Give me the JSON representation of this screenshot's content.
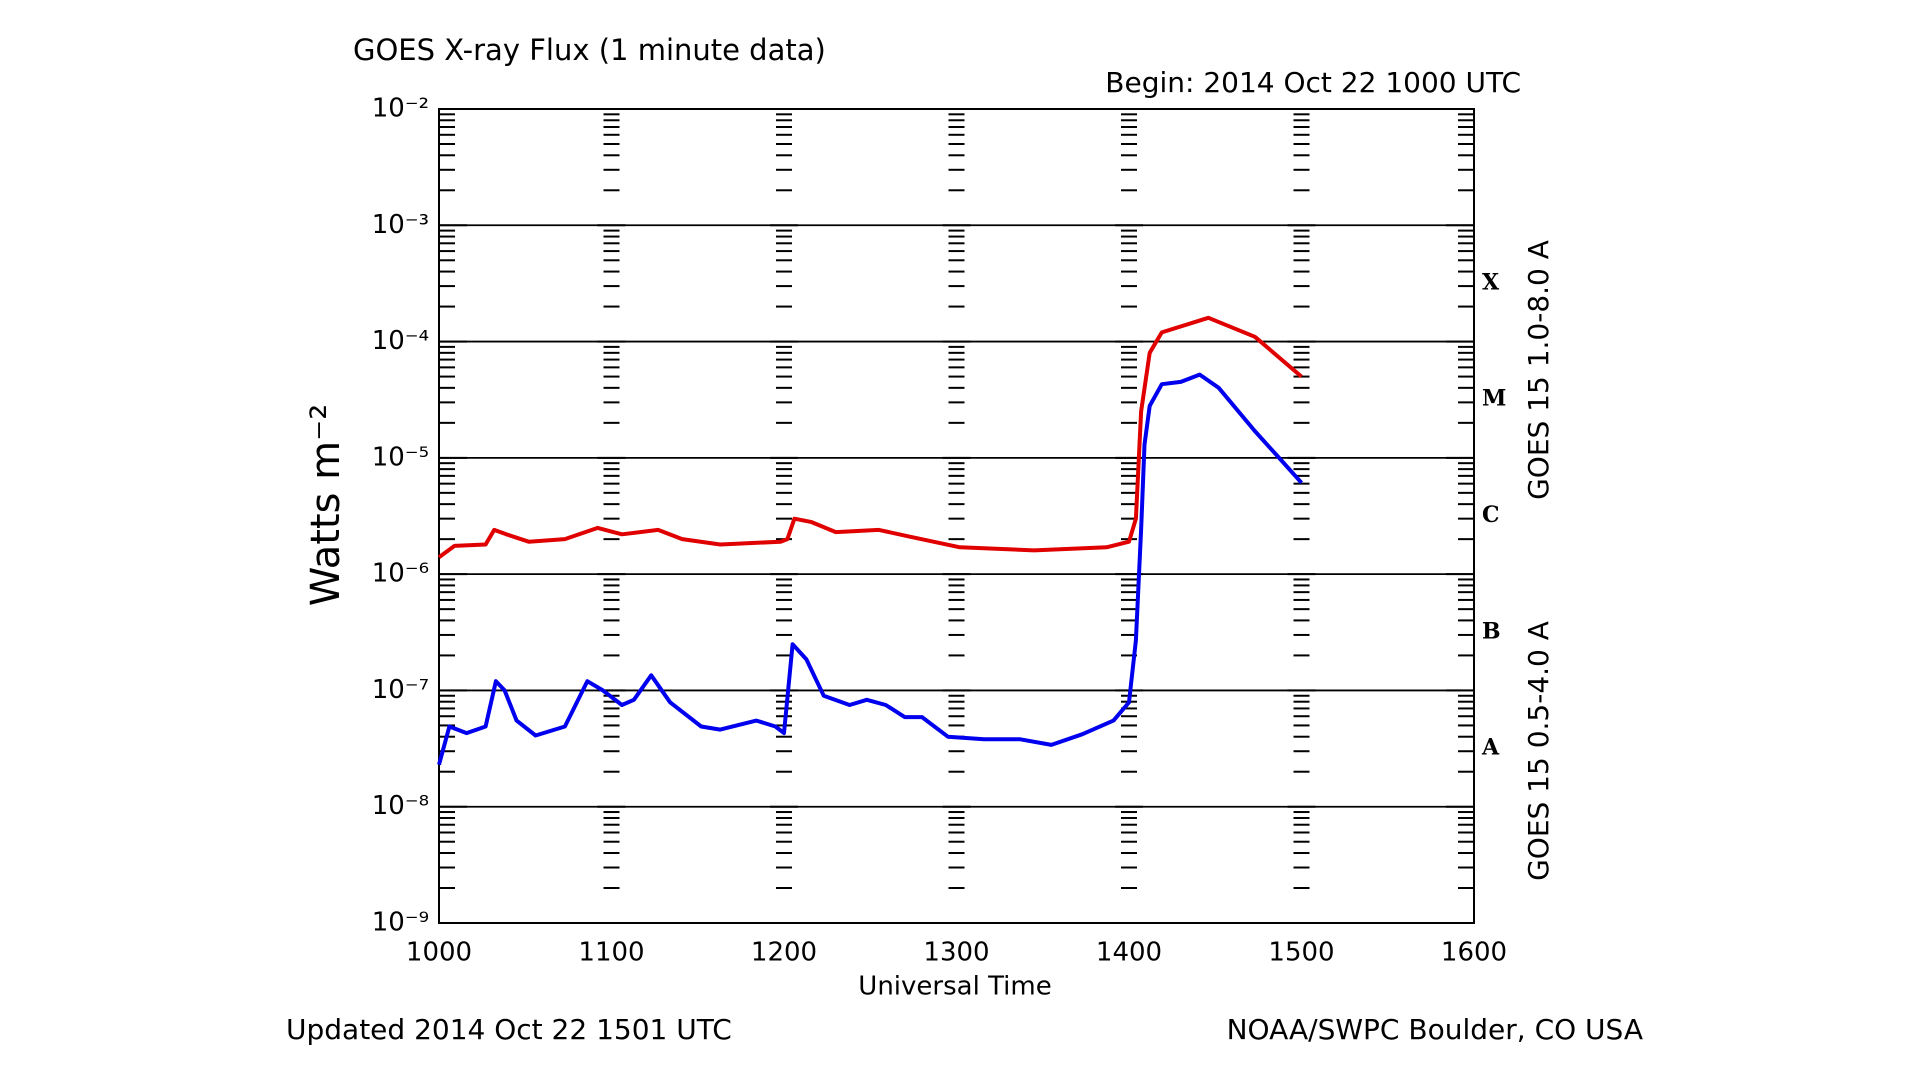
{
  "chart_data": {
    "type": "line",
    "title": "GOES X-ray Flux (1 minute data)",
    "subtitle": "Begin: 2014 Oct 22 1000 UTC",
    "x_label": "Universal Time",
    "y_label": "Watts m⁻²",
    "footer_left": "Updated 2014 Oct 22 1501 UTC",
    "footer_right": "NOAA/SWPC Boulder, CO USA",
    "yscale": "log",
    "grid": true,
    "legend": "right",
    "xlim": [
      10,
      16
    ],
    "xticks": [
      {
        "value": 10,
        "label": "1000"
      },
      {
        "value": 11,
        "label": "1100"
      },
      {
        "value": 12,
        "label": "1200"
      },
      {
        "value": 13,
        "label": "1300"
      },
      {
        "value": 14,
        "label": "1400"
      },
      {
        "value": 15,
        "label": "1500"
      },
      {
        "value": 16,
        "label": "1600"
      }
    ],
    "ylim": [
      1e-09,
      0.01
    ],
    "yticks": [
      {
        "value": 1e-09,
        "label": "10⁻⁹"
      },
      {
        "value": 1e-08,
        "label": "10⁻⁸"
      },
      {
        "value": 1e-07,
        "label": "10⁻⁷"
      },
      {
        "value": 1e-06,
        "label": "10⁻⁶"
      },
      {
        "value": 1e-05,
        "label": "10⁻⁵"
      },
      {
        "value": 0.0001,
        "label": "10⁻⁴"
      },
      {
        "value": 0.001,
        "label": "10⁻³"
      },
      {
        "value": 0.01,
        "label": "10⁻²"
      }
    ],
    "flare_classes": [
      {
        "label": "A",
        "value": 1e-08
      },
      {
        "label": "B",
        "value": 1e-07
      },
      {
        "label": "C",
        "value": 1e-06
      },
      {
        "label": "M",
        "value": 1e-05
      },
      {
        "label": "X",
        "value": 0.0001
      }
    ],
    "series": [
      {
        "name": "GOES 15 1.0-8.0 A",
        "color": "#e00000",
        "x": [
          10.0,
          10.09,
          10.27,
          10.32,
          10.39,
          10.52,
          10.73,
          10.92,
          11.06,
          11.27,
          11.41,
          11.63,
          11.98,
          12.02,
          12.06,
          12.16,
          12.3,
          12.55,
          12.73,
          13.02,
          13.45,
          13.87,
          14.0,
          14.04,
          14.07,
          14.12,
          14.19,
          14.46,
          14.73,
          15.0
        ],
        "values": [
          1.4e-06,
          1.75e-06,
          1.8e-06,
          2.4e-06,
          2.2e-06,
          1.9e-06,
          2e-06,
          2.5e-06,
          2.2e-06,
          2.4e-06,
          2e-06,
          1.8e-06,
          1.9e-06,
          2e-06,
          3e-06,
          2.8e-06,
          2.3e-06,
          2.4e-06,
          2.1e-06,
          1.7e-06,
          1.6e-06,
          1.7e-06,
          1.9e-06,
          3e-06,
          2.5e-05,
          8e-05,
          0.00012,
          0.00016,
          0.00011,
          5e-05
        ]
      },
      {
        "name": "GOES 15 0.5-4.0 A",
        "color": "#0000ee",
        "x": [
          10.0,
          10.06,
          10.16,
          10.27,
          10.33,
          10.38,
          10.45,
          10.56,
          10.73,
          10.86,
          10.95,
          11.06,
          11.13,
          11.23,
          11.34,
          11.52,
          11.63,
          11.84,
          11.95,
          12.0,
          12.05,
          12.13,
          12.23,
          12.38,
          12.48,
          12.59,
          12.7,
          12.8,
          12.95,
          13.16,
          13.37,
          13.55,
          13.73,
          13.91,
          14.0,
          14.04,
          14.07,
          14.09,
          14.12,
          14.19,
          14.3,
          14.41,
          14.52,
          14.73,
          14.87,
          15.0
        ],
        "values": [
          2.3e-08,
          4.9e-08,
          4.3e-08,
          4.9e-08,
          1.2e-07,
          1e-07,
          5.5e-08,
          4.1e-08,
          4.9e-08,
          1.2e-07,
          1e-07,
          7.5e-08,
          8.3e-08,
          1.35e-07,
          7.9e-08,
          4.9e-08,
          4.6e-08,
          5.5e-08,
          4.9e-08,
          4.3e-08,
          2.5e-07,
          1.85e-07,
          9e-08,
          7.5e-08,
          8.3e-08,
          7.5e-08,
          5.9e-08,
          5.9e-08,
          4e-08,
          3.8e-08,
          3.8e-08,
          3.4e-08,
          4.2e-08,
          5.5e-08,
          7.9e-08,
          2.7e-07,
          2.4e-06,
          1.3e-05,
          2.8e-05,
          4.3e-05,
          4.5e-05,
          5.2e-05,
          4e-05,
          1.7e-05,
          1e-05,
          6.1e-06
        ]
      }
    ]
  }
}
